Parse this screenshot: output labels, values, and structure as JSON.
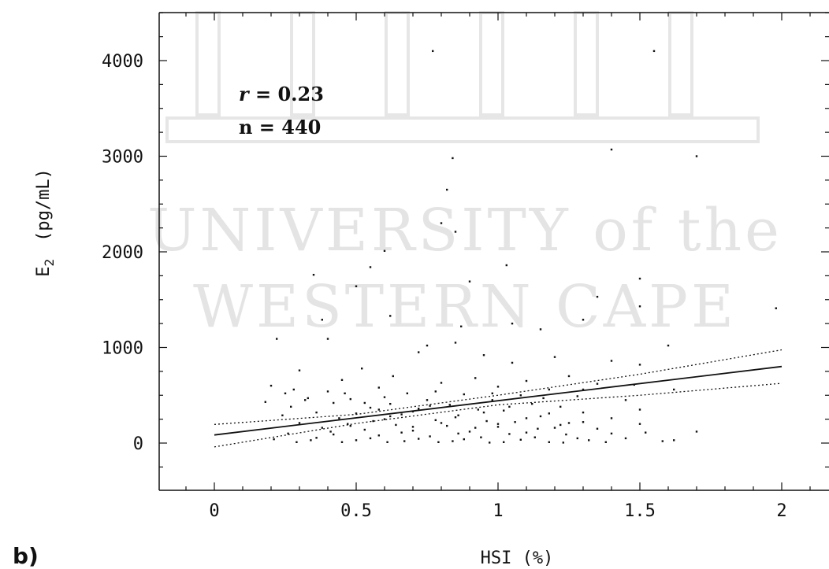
{
  "panel_label": "b)",
  "chart_data": {
    "type": "scatter",
    "xlabel": "HSI (%)",
    "ylabel": "E2 (pg/mL)",
    "ylabel_base": "E",
    "ylabel_sub": "2",
    "ylabel_rest": "(pg/mL)",
    "xlim": [
      -0.2,
      2.15
    ],
    "ylim": [
      -500,
      4500
    ],
    "xticks": [
      0,
      0.5,
      1,
      1.5,
      2
    ],
    "xtick_labels": [
      "0",
      "0.5",
      "1",
      "1.5",
      "2"
    ],
    "yticks": [
      0,
      1000,
      2000,
      3000,
      4000
    ],
    "ytick_labels": [
      "0",
      "1000",
      "2000",
      "3000",
      "4000"
    ],
    "grid": false,
    "annotations": {
      "r_label": "r",
      "r_value": " = 0.23",
      "n_text": "n = 440"
    },
    "regression": {
      "intercept": 85,
      "slope": 358
    },
    "confidence_band": {
      "upper": [
        [
          0,
          195
        ],
        [
          0.5,
          300
        ],
        [
          1,
          500
        ],
        [
          1.5,
          720
        ],
        [
          2,
          975
        ]
      ],
      "lower": [
        [
          0,
          -40
        ],
        [
          0.5,
          205
        ],
        [
          1,
          400
        ],
        [
          1.5,
          500
        ],
        [
          2,
          625
        ]
      ]
    },
    "watermark": [
      "UNIVERSITY of the",
      "WESTERN CAPE"
    ],
    "points": [
      [
        0.77,
        4100
      ],
      [
        1.55,
        4100
      ],
      [
        1.4,
        3070
      ],
      [
        1.7,
        3000
      ],
      [
        0.84,
        2980
      ],
      [
        0.82,
        2650
      ],
      [
        0.85,
        2210
      ],
      [
        0.8,
        2300
      ],
      [
        0.6,
        2010
      ],
      [
        0.55,
        1840
      ],
      [
        1.03,
        1860
      ],
      [
        0.5,
        1640
      ],
      [
        0.35,
        1760
      ],
      [
        1.5,
        1720
      ],
      [
        0.9,
        1690
      ],
      [
        1.35,
        1530
      ],
      [
        1.5,
        1430
      ],
      [
        1.98,
        1410
      ],
      [
        1.05,
        1250
      ],
      [
        0.38,
        1290
      ],
      [
        1.3,
        1290
      ],
      [
        0.62,
        1330
      ],
      [
        0.87,
        1220
      ],
      [
        1.15,
        1190
      ],
      [
        0.22,
        1090
      ],
      [
        0.4,
        1090
      ],
      [
        0.85,
        1050
      ],
      [
        0.75,
        1020
      ],
      [
        1.6,
        1020
      ],
      [
        0.72,
        950
      ],
      [
        0.95,
        920
      ],
      [
        1.2,
        900
      ],
      [
        1.4,
        860
      ],
      [
        1.05,
        840
      ],
      [
        1.5,
        820
      ],
      [
        0.52,
        780
      ],
      [
        0.3,
        760
      ],
      [
        0.63,
        700
      ],
      [
        0.92,
        680
      ],
      [
        1.25,
        700
      ],
      [
        1.1,
        650
      ],
      [
        0.45,
        660
      ],
      [
        0.8,
        630
      ],
      [
        1.35,
        620
      ],
      [
        1.62,
        560
      ],
      [
        0.2,
        600
      ],
      [
        0.28,
        560
      ],
      [
        0.58,
        580
      ],
      [
        1.0,
        590
      ],
      [
        1.18,
        560
      ],
      [
        0.4,
        540
      ],
      [
        0.68,
        520
      ],
      [
        0.88,
        510
      ],
      [
        1.08,
        500
      ],
      [
        1.28,
        490
      ],
      [
        0.33,
        470
      ],
      [
        0.48,
        460
      ],
      [
        0.75,
        450
      ],
      [
        0.98,
        450
      ],
      [
        1.45,
        450
      ],
      [
        0.18,
        430
      ],
      [
        0.42,
        420
      ],
      [
        0.62,
        410
      ],
      [
        0.83,
        400
      ],
      [
        1.12,
        410
      ],
      [
        1.22,
        380
      ],
      [
        0.27,
        380
      ],
      [
        0.55,
        370
      ],
      [
        0.72,
        360
      ],
      [
        0.93,
        350
      ],
      [
        1.02,
        340
      ],
      [
        1.3,
        320
      ],
      [
        0.36,
        320
      ],
      [
        0.5,
        310
      ],
      [
        0.66,
        300
      ],
      [
        0.86,
        290
      ],
      [
        1.15,
        280
      ],
      [
        1.4,
        260
      ],
      [
        0.24,
        290
      ],
      [
        0.44,
        260
      ],
      [
        0.6,
        250
      ],
      [
        0.78,
        240
      ],
      [
        0.96,
        230
      ],
      [
        1.06,
        220
      ],
      [
        1.25,
        210
      ],
      [
        0.3,
        210
      ],
      [
        0.47,
        200
      ],
      [
        0.64,
        190
      ],
      [
        0.82,
        180
      ],
      [
        1.0,
        170
      ],
      [
        1.2,
        160
      ],
      [
        1.35,
        150
      ],
      [
        0.38,
        160
      ],
      [
        0.53,
        140
      ],
      [
        0.7,
        130
      ],
      [
        0.9,
        120
      ],
      [
        1.1,
        110
      ],
      [
        1.52,
        110
      ],
      [
        1.7,
        120
      ],
      [
        0.26,
        100
      ],
      [
        0.42,
        90
      ],
      [
        0.58,
        80
      ],
      [
        0.76,
        70
      ],
      [
        0.94,
        60
      ],
      [
        1.13,
        60
      ],
      [
        1.28,
        50
      ],
      [
        1.45,
        50
      ],
      [
        1.62,
        30
      ],
      [
        0.21,
        40
      ],
      [
        0.34,
        30
      ],
      [
        0.5,
        30
      ],
      [
        0.67,
        20
      ],
      [
        0.84,
        20
      ],
      [
        1.02,
        10
      ],
      [
        1.18,
        10
      ],
      [
        1.38,
        10
      ],
      [
        1.58,
        20
      ],
      [
        0.29,
        10
      ],
      [
        0.45,
        10
      ],
      [
        0.61,
        10
      ],
      [
        0.79,
        10
      ],
      [
        0.97,
        5
      ],
      [
        1.23,
        5
      ],
      [
        0.36,
        55
      ],
      [
        0.55,
        50
      ],
      [
        0.72,
        45
      ],
      [
        0.88,
        40
      ],
      [
        1.08,
        35
      ],
      [
        1.32,
        30
      ],
      [
        0.41,
        120
      ],
      [
        0.66,
        110
      ],
      [
        0.86,
        100
      ],
      [
        1.04,
        95
      ],
      [
        1.24,
        90
      ],
      [
        0.48,
        180
      ],
      [
        0.7,
        170
      ],
      [
        0.92,
        160
      ],
      [
        1.14,
        150
      ],
      [
        0.56,
        230
      ],
      [
        0.8,
        210
      ],
      [
        1.0,
        200
      ],
      [
        1.22,
        190
      ],
      [
        0.62,
        280
      ],
      [
        0.85,
        270
      ],
      [
        1.1,
        260
      ],
      [
        0.7,
        330
      ],
      [
        0.95,
        320
      ],
      [
        1.18,
        310
      ],
      [
        0.58,
        350
      ],
      [
        0.76,
        390
      ],
      [
        1.04,
        380
      ],
      [
        1.3,
        560
      ],
      [
        1.48,
        610
      ],
      [
        1.5,
        350
      ],
      [
        1.5,
        200
      ],
      [
        1.4,
        100
      ],
      [
        1.3,
        220
      ],
      [
        0.32,
        450
      ],
      [
        0.25,
        520
      ],
      [
        0.46,
        520
      ],
      [
        0.6,
        480
      ],
      [
        0.78,
        540
      ],
      [
        0.98,
        520
      ],
      [
        1.16,
        470
      ],
      [
        0.53,
        420
      ]
    ]
  }
}
